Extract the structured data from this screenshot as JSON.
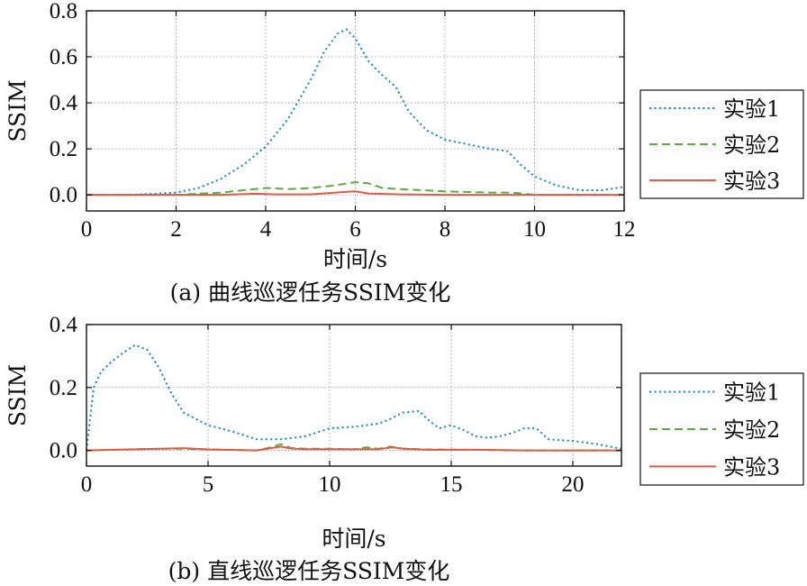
{
  "chart_data": [
    {
      "type": "line",
      "caption": "(a) 曲线巡逻任务SSIM变化",
      "xlabel": "时间/s",
      "ylabel": "SSIM",
      "xlim": [
        0,
        12
      ],
      "ylim": [
        -0.07,
        0.8
      ],
      "xticks": [
        0,
        2,
        4,
        6,
        8,
        10,
        12
      ],
      "yticks": [
        0.0,
        0.2,
        0.4,
        0.6,
        0.8
      ],
      "xtick_labels": [
        "0",
        "2",
        "4",
        "6",
        "8",
        "10",
        "12"
      ],
      "ytick_labels": [
        "0.0",
        "0.2",
        "0.4",
        "0.6",
        "0.8"
      ],
      "grid": true,
      "legend_position": "right",
      "series": [
        {
          "name": "实验1",
          "color": "#1f8fb8",
          "style": "dotted",
          "x": [
            0,
            1,
            1.5,
            2,
            2.5,
            3,
            3.5,
            4,
            4.5,
            5,
            5.3,
            5.6,
            5.8,
            6,
            6.3,
            6.6,
            6.9,
            7.2,
            7.6,
            8,
            8.5,
            9,
            9.4,
            9.7,
            10,
            10.5,
            11,
            11.5,
            12
          ],
          "y": [
            0.0,
            0.0,
            0.005,
            0.01,
            0.03,
            0.07,
            0.13,
            0.21,
            0.33,
            0.5,
            0.62,
            0.7,
            0.72,
            0.68,
            0.58,
            0.52,
            0.47,
            0.36,
            0.28,
            0.24,
            0.22,
            0.2,
            0.19,
            0.13,
            0.08,
            0.04,
            0.02,
            0.02,
            0.035
          ]
        },
        {
          "name": "实验2",
          "color": "#5aad3c",
          "style": "dashed",
          "x": [
            0,
            2,
            3,
            3.5,
            4,
            4.5,
            5,
            5.5,
            6,
            6.3,
            6.6,
            7,
            7.5,
            8,
            9,
            9.5,
            10,
            10.5,
            12
          ],
          "y": [
            0.0,
            0.0,
            0.01,
            0.02,
            0.03,
            0.025,
            0.03,
            0.04,
            0.055,
            0.05,
            0.03,
            0.025,
            0.02,
            0.015,
            0.01,
            0.01,
            0.0,
            0.0,
            0.0
          ]
        },
        {
          "name": "实验3",
          "color": "#e05a4a",
          "style": "solid",
          "x": [
            0,
            3,
            3.8,
            4.2,
            5,
            5.7,
            6,
            6.3,
            7,
            8,
            10,
            12
          ],
          "y": [
            0.0,
            0.0,
            0.005,
            0.002,
            0.002,
            0.012,
            0.015,
            0.006,
            0.002,
            0.0,
            0.0,
            0.0
          ]
        }
      ]
    },
    {
      "type": "line",
      "caption": "(b) 直线巡逻任务SSIM变化",
      "xlabel": "时间/s",
      "ylabel": "SSIM",
      "xlim": [
        0,
        22
      ],
      "ylim": [
        -0.05,
        0.4
      ],
      "xticks": [
        0,
        5,
        10,
        15,
        20
      ],
      "yticks": [
        0.0,
        0.2,
        0.4
      ],
      "xtick_labels": [
        "0",
        "5",
        "10",
        "15",
        "20"
      ],
      "ytick_labels": [
        "0.0",
        "0.2",
        "0.4"
      ],
      "grid": true,
      "legend_position": "right",
      "series": [
        {
          "name": "实验1",
          "color": "#1f8fb8",
          "style": "dotted",
          "x": [
            0,
            0.3,
            0.6,
            1,
            1.5,
            2,
            2.5,
            3,
            3.5,
            4,
            5,
            6,
            7,
            8,
            9,
            10,
            11,
            12,
            12.5,
            13,
            13.7,
            14,
            14.5,
            15,
            15.5,
            16,
            16.5,
            17,
            17.5,
            18,
            18.5,
            19,
            20,
            21,
            22
          ],
          "y": [
            0.0,
            0.2,
            0.25,
            0.28,
            0.31,
            0.335,
            0.32,
            0.26,
            0.18,
            0.12,
            0.08,
            0.06,
            0.035,
            0.035,
            0.045,
            0.07,
            0.075,
            0.085,
            0.1,
            0.12,
            0.125,
            0.1,
            0.07,
            0.08,
            0.065,
            0.045,
            0.04,
            0.045,
            0.055,
            0.07,
            0.07,
            0.035,
            0.03,
            0.02,
            0.005
          ]
        },
        {
          "name": "实验2",
          "color": "#5aad3c",
          "style": "dashed",
          "x": [
            0,
            3,
            4,
            5,
            7,
            7.6,
            8,
            8.4,
            9,
            10,
            11,
            11.5,
            12,
            12.5,
            13,
            14,
            16,
            18,
            20,
            22
          ],
          "y": [
            0.0,
            0.005,
            0.005,
            0.003,
            0.0,
            0.01,
            0.02,
            0.008,
            0.005,
            0.005,
            0.003,
            0.01,
            0.005,
            0.012,
            0.006,
            0.003,
            0.002,
            0.0,
            0.0,
            0.0
          ]
        },
        {
          "name": "实验3",
          "color": "#e05a4a",
          "style": "solid",
          "x": [
            0,
            3,
            4,
            5,
            7,
            8,
            8.4,
            9,
            10,
            12,
            12.6,
            13,
            14,
            16,
            18,
            22
          ],
          "y": [
            0.0,
            0.005,
            0.007,
            0.003,
            0.0,
            0.012,
            0.006,
            0.004,
            0.004,
            0.004,
            0.01,
            0.005,
            0.002,
            0.002,
            0.0,
            0.0
          ]
        }
      ]
    }
  ]
}
